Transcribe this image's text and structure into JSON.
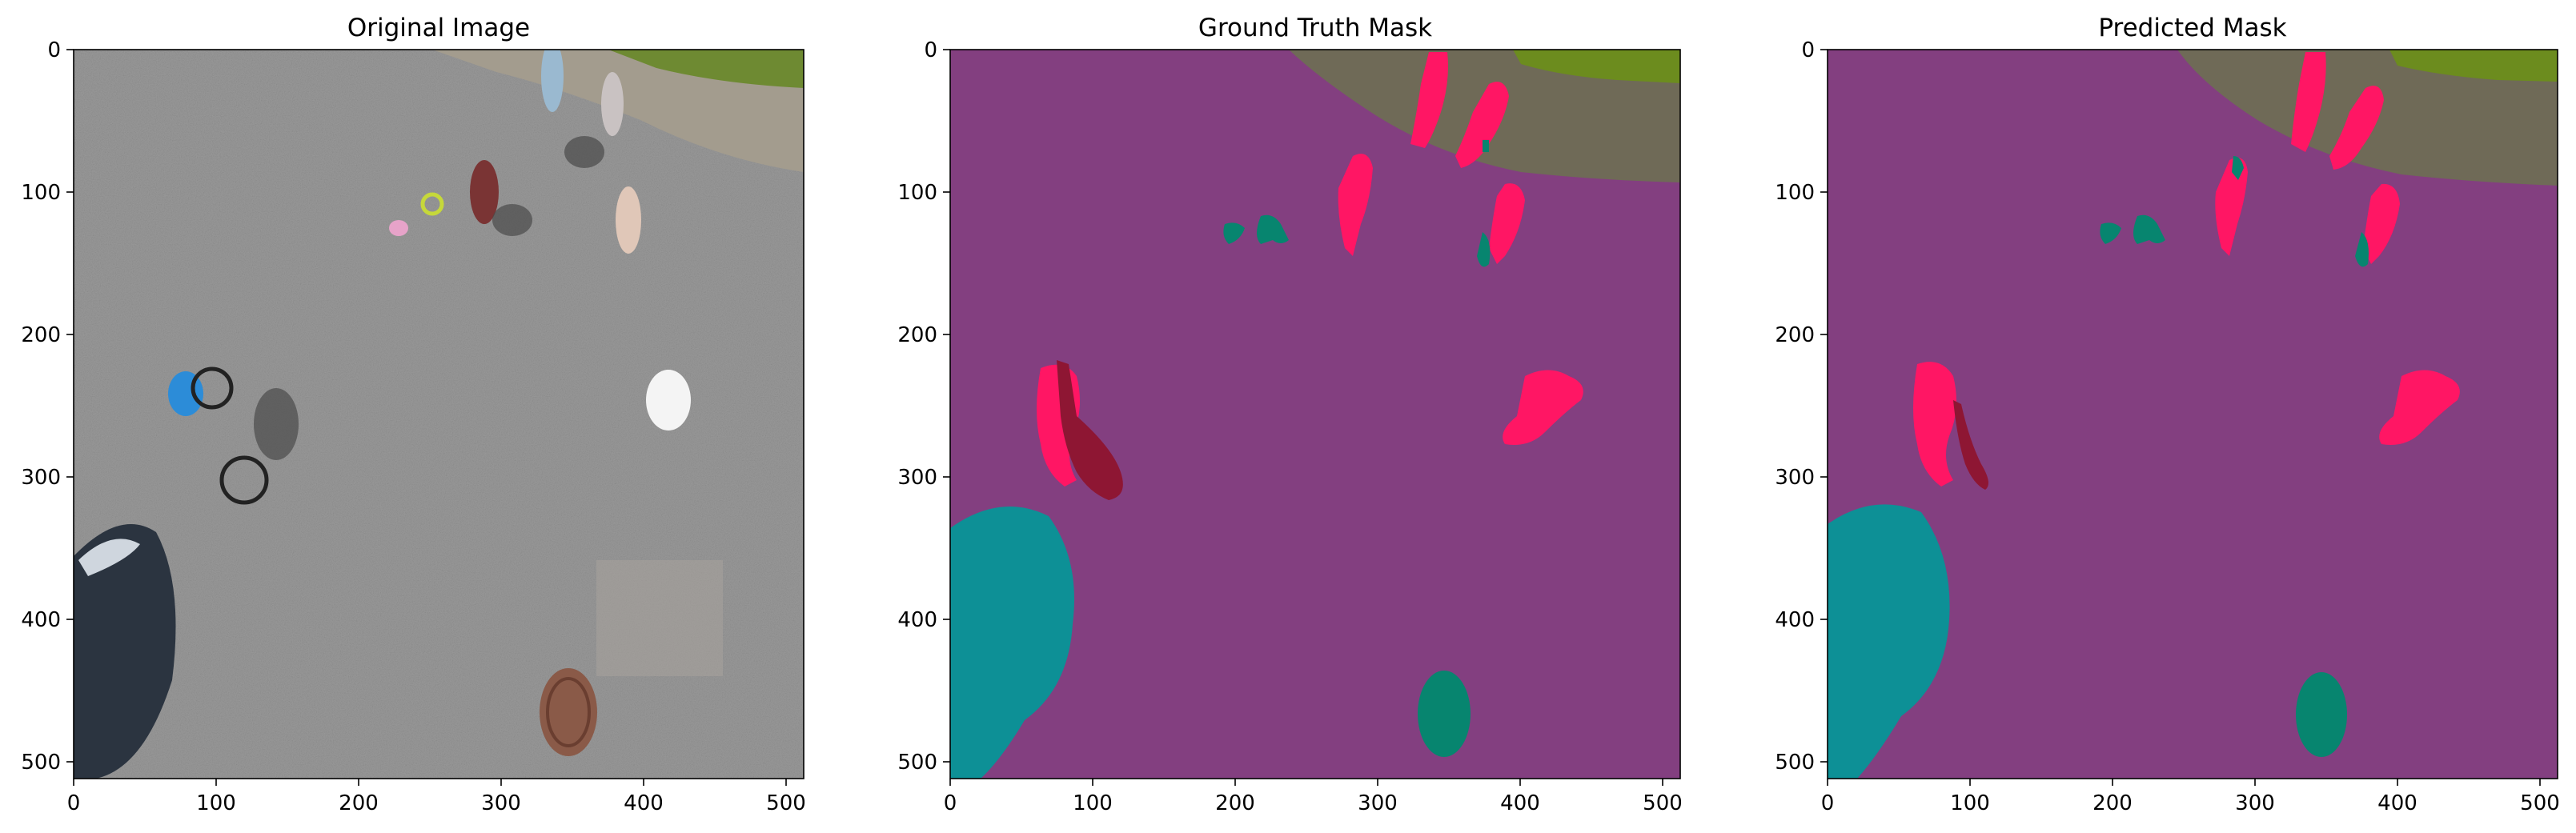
{
  "panels": [
    {
      "title": "Original Image",
      "x_ticks": [
        "0",
        "100",
        "200",
        "300",
        "400",
        "500"
      ],
      "y_ticks": [
        "0",
        "100",
        "200",
        "300",
        "400",
        "500"
      ]
    },
    {
      "title": "Ground Truth Mask",
      "x_ticks": [
        "0",
        "100",
        "200",
        "300",
        "400",
        "500"
      ],
      "y_ticks": [
        "0",
        "100",
        "200",
        "300",
        "400",
        "500"
      ]
    },
    {
      "title": "Predicted Mask",
      "x_ticks": [
        "0",
        "100",
        "200",
        "300",
        "400",
        "500"
      ],
      "y_ticks": [
        "0",
        "100",
        "200",
        "300",
        "400",
        "500"
      ]
    }
  ],
  "colors": {
    "road": "#833f80",
    "vegetation": "#6c8c1e",
    "gravel": "#6f6a57",
    "person": "#ff1664",
    "bicycle": "#8e1633",
    "car": "#0d9096",
    "object": "#07856f",
    "asphalt_photo": "#8d8d8d"
  }
}
